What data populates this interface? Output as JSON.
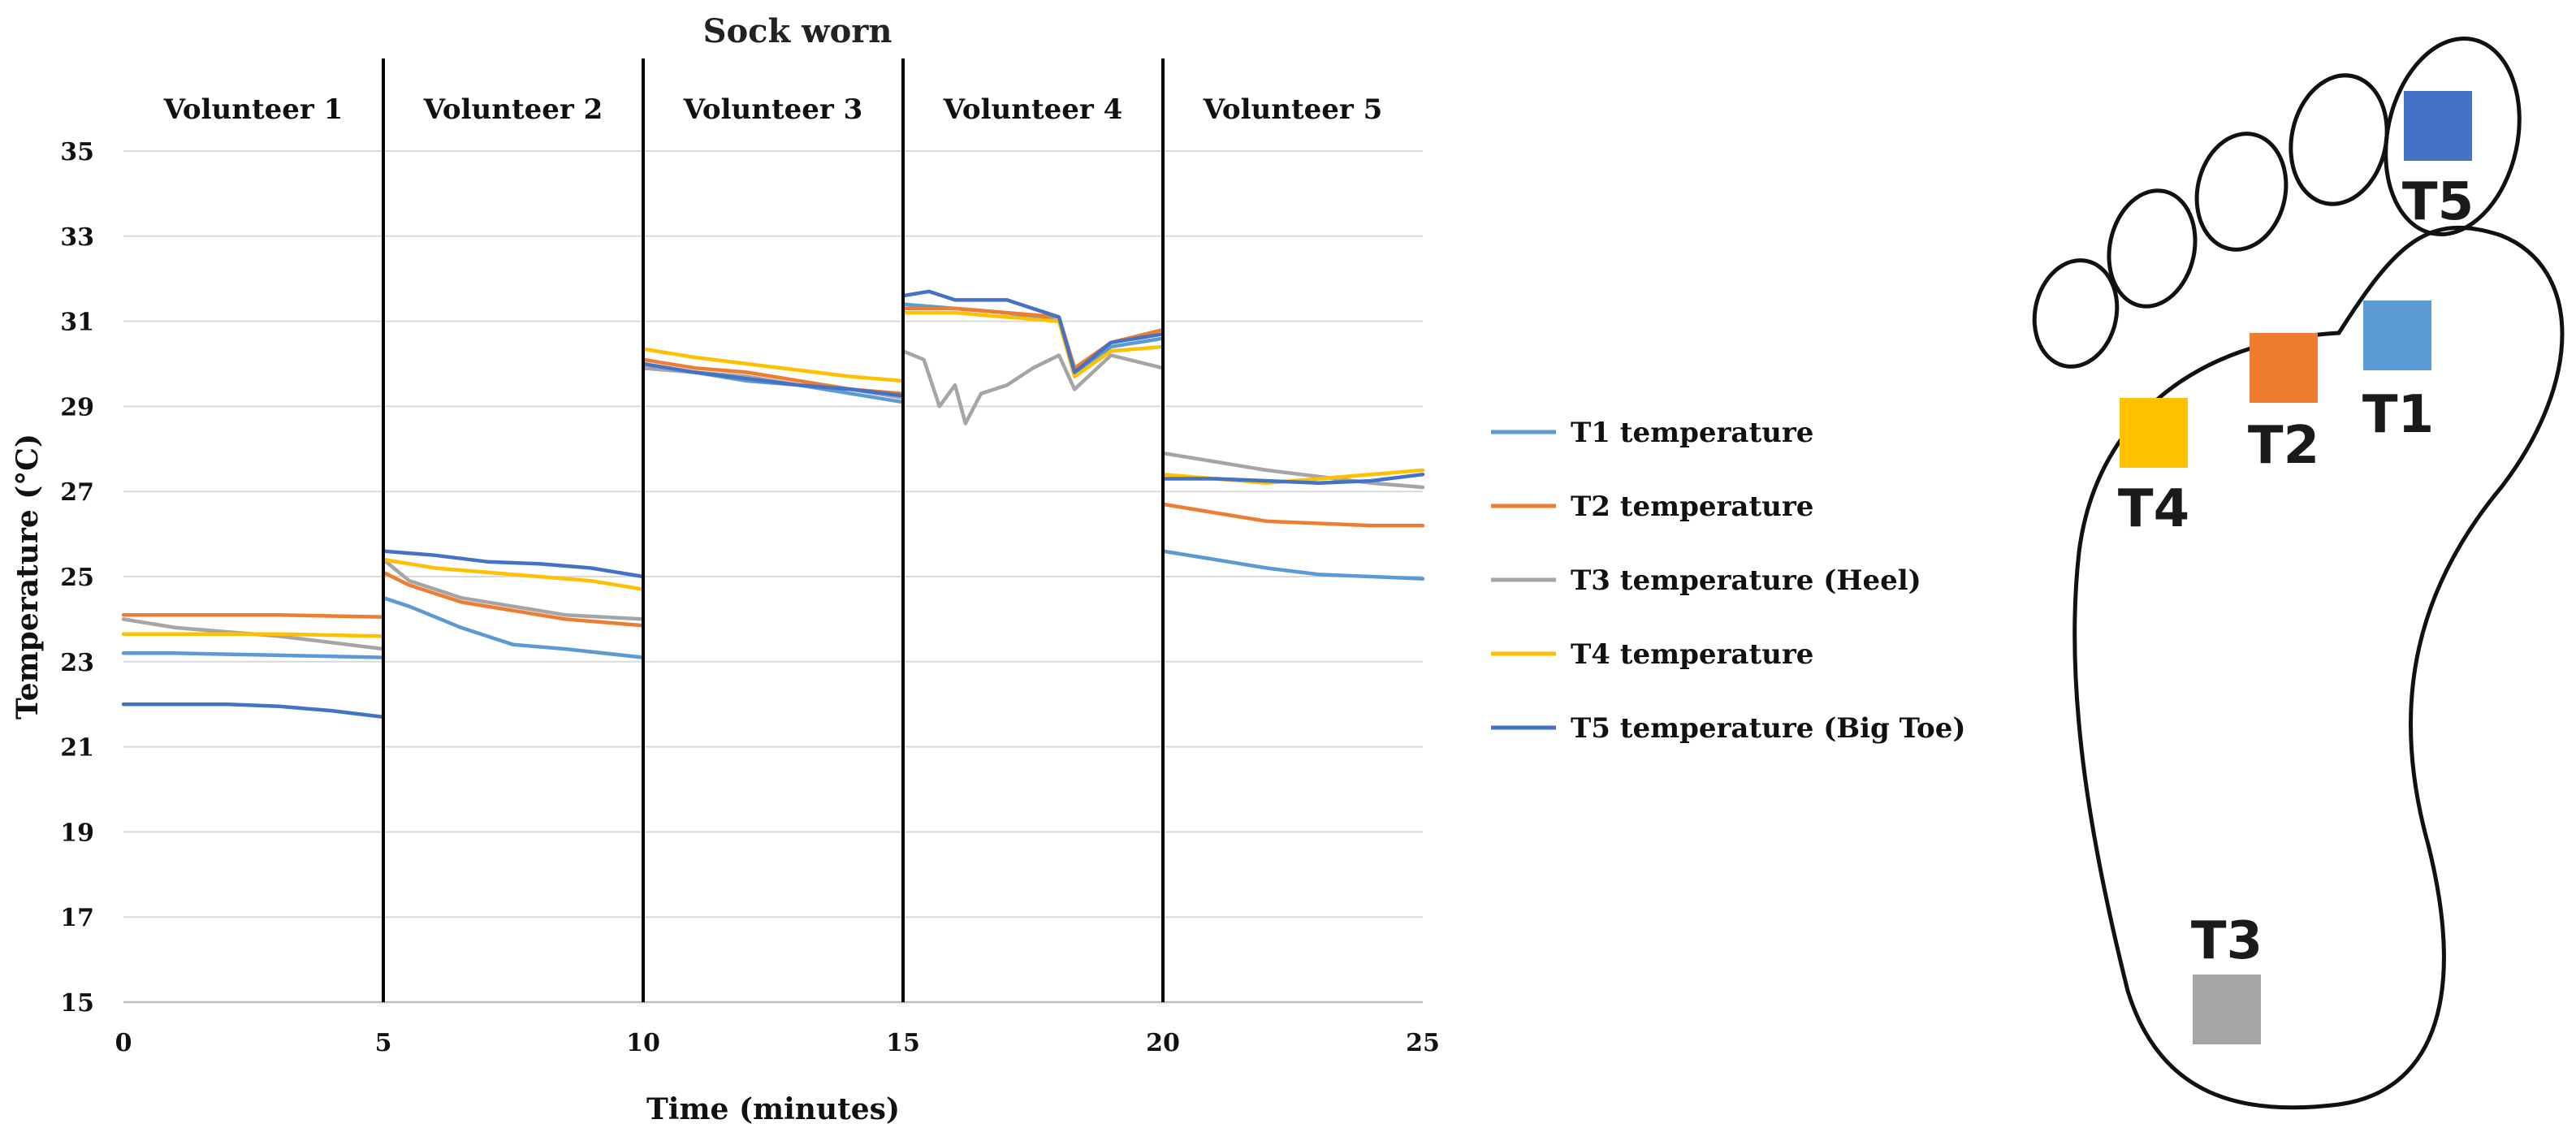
{
  "chart_data": {
    "type": "line",
    "title": "Sock worn",
    "xlabel": "Time (minutes)",
    "ylabel": "Temperature (°C)",
    "xlim": [
      0,
      25
    ],
    "ylim": [
      15,
      35
    ],
    "xticks": [
      "0",
      "5",
      "10",
      "15",
      "20",
      "25"
    ],
    "yticks": [
      "15",
      "17",
      "19",
      "21",
      "23",
      "25",
      "27",
      "29",
      "31",
      "33",
      "35"
    ],
    "grid": "horizontal",
    "legend_position": "right",
    "segments": [
      {
        "label": "Volunteer 1",
        "start": 0,
        "end": 5
      },
      {
        "label": "Volunteer 2",
        "start": 5,
        "end": 10
      },
      {
        "label": "Volunteer 3",
        "start": 10,
        "end": 15
      },
      {
        "label": "Volunteer 4",
        "start": 15,
        "end": 20
      },
      {
        "label": "Volunteer 5",
        "start": 20,
        "end": 25
      }
    ],
    "series": [
      {
        "name": "T1 temperature",
        "color": "#5B9BD5",
        "segments": [
          [
            [
              0,
              23.2
            ],
            [
              1,
              23.2
            ],
            [
              3,
              23.15
            ],
            [
              5,
              23.1
            ]
          ],
          [
            [
              5,
              24.5
            ],
            [
              5.5,
              24.3
            ],
            [
              6.5,
              23.8
            ],
            [
              7.5,
              23.4
            ],
            [
              8.5,
              23.3
            ],
            [
              10,
              23.1
            ]
          ],
          [
            [
              10,
              29.9
            ],
            [
              11,
              29.8
            ],
            [
              12,
              29.6
            ],
            [
              13,
              29.5
            ],
            [
              14,
              29.3
            ],
            [
              15,
              29.1
            ]
          ],
          [
            [
              15,
              31.4
            ],
            [
              16,
              31.3
            ],
            [
              17,
              31.2
            ],
            [
              18,
              31.0
            ],
            [
              18.3,
              29.8
            ],
            [
              19,
              30.4
            ],
            [
              20,
              30.6
            ]
          ],
          [
            [
              20,
              25.6
            ],
            [
              21,
              25.4
            ],
            [
              22,
              25.2
            ],
            [
              23,
              25.05
            ],
            [
              24,
              25.0
            ],
            [
              25,
              24.95
            ]
          ]
        ]
      },
      {
        "name": "T2 temperature",
        "color": "#ED7D31",
        "segments": [
          [
            [
              0,
              24.1
            ],
            [
              1,
              24.1
            ],
            [
              3,
              24.1
            ],
            [
              5,
              24.05
            ]
          ],
          [
            [
              5,
              25.1
            ],
            [
              5.5,
              24.8
            ],
            [
              6.5,
              24.4
            ],
            [
              7.5,
              24.2
            ],
            [
              8.5,
              24.0
            ],
            [
              10,
              23.85
            ]
          ],
          [
            [
              10,
              30.1
            ],
            [
              11,
              29.9
            ],
            [
              12,
              29.8
            ],
            [
              13,
              29.6
            ],
            [
              14,
              29.4
            ],
            [
              15,
              29.3
            ]
          ],
          [
            [
              15,
              31.3
            ],
            [
              16,
              31.3
            ],
            [
              17,
              31.2
            ],
            [
              18,
              31.1
            ],
            [
              18.3,
              29.9
            ],
            [
              19,
              30.5
            ],
            [
              20,
              30.8
            ]
          ],
          [
            [
              20,
              26.7
            ],
            [
              21,
              26.5
            ],
            [
              22,
              26.3
            ],
            [
              23,
              26.25
            ],
            [
              24,
              26.2
            ],
            [
              25,
              26.2
            ]
          ]
        ]
      },
      {
        "name": "T3 temperature (Heel)",
        "color": "#A5A5A5",
        "segments": [
          [
            [
              0,
              24.0
            ],
            [
              1,
              23.8
            ],
            [
              2,
              23.7
            ],
            [
              3,
              23.6
            ],
            [
              4,
              23.45
            ],
            [
              5,
              23.3
            ]
          ],
          [
            [
              5,
              25.4
            ],
            [
              5.5,
              24.9
            ],
            [
              6.5,
              24.5
            ],
            [
              7.5,
              24.3
            ],
            [
              8.5,
              24.1
            ],
            [
              10,
              24.0
            ]
          ],
          [
            [
              10,
              29.9
            ],
            [
              11,
              29.8
            ],
            [
              12,
              29.7
            ],
            [
              13,
              29.5
            ],
            [
              14,
              29.4
            ],
            [
              15,
              29.2
            ]
          ],
          [
            [
              15,
              30.3
            ],
            [
              15.4,
              30.1
            ],
            [
              15.7,
              29.0
            ],
            [
              16.0,
              29.5
            ],
            [
              16.2,
              28.6
            ],
            [
              16.5,
              29.3
            ],
            [
              17,
              29.5
            ],
            [
              17.5,
              29.9
            ],
            [
              18,
              30.2
            ],
            [
              18.3,
              29.4
            ],
            [
              19,
              30.2
            ],
            [
              20,
              29.9
            ]
          ],
          [
            [
              20,
              27.9
            ],
            [
              21,
              27.7
            ],
            [
              22,
              27.5
            ],
            [
              23,
              27.35
            ],
            [
              24,
              27.2
            ],
            [
              25,
              27.1
            ]
          ]
        ]
      },
      {
        "name": "T4 temperature",
        "color": "#FFC000",
        "segments": [
          [
            [
              0,
              23.65
            ],
            [
              1,
              23.65
            ],
            [
              3,
              23.65
            ],
            [
              5,
              23.6
            ]
          ],
          [
            [
              5,
              25.4
            ],
            [
              6,
              25.2
            ],
            [
              7,
              25.1
            ],
            [
              8,
              25.0
            ],
            [
              9,
              24.9
            ],
            [
              10,
              24.7
            ]
          ],
          [
            [
              10,
              30.35
            ],
            [
              11,
              30.15
            ],
            [
              12,
              30.0
            ],
            [
              13,
              29.85
            ],
            [
              14,
              29.7
            ],
            [
              15,
              29.6
            ]
          ],
          [
            [
              15,
              31.2
            ],
            [
              16,
              31.2
            ],
            [
              17,
              31.1
            ],
            [
              18,
              31.0
            ],
            [
              18.3,
              29.7
            ],
            [
              19,
              30.3
            ],
            [
              20,
              30.4
            ]
          ],
          [
            [
              20,
              27.4
            ],
            [
              21,
              27.3
            ],
            [
              22,
              27.2
            ],
            [
              23,
              27.3
            ],
            [
              24,
              27.4
            ],
            [
              25,
              27.5
            ]
          ]
        ]
      },
      {
        "name": "T5 temperature (Big Toe)",
        "color": "#4472C4",
        "segments": [
          [
            [
              0,
              22.0
            ],
            [
              1,
              22.0
            ],
            [
              2,
              22.0
            ],
            [
              3,
              21.95
            ],
            [
              4,
              21.85
            ],
            [
              5,
              21.7
            ]
          ],
          [
            [
              5,
              25.6
            ],
            [
              6,
              25.5
            ],
            [
              7,
              25.35
            ],
            [
              8,
              25.3
            ],
            [
              9,
              25.2
            ],
            [
              10,
              25.0
            ]
          ],
          [
            [
              10,
              30.0
            ],
            [
              11,
              29.8
            ],
            [
              12,
              29.65
            ],
            [
              13,
              29.5
            ],
            [
              14,
              29.4
            ],
            [
              15,
              29.25
            ]
          ],
          [
            [
              15,
              31.6
            ],
            [
              15.5,
              31.7
            ],
            [
              16,
              31.5
            ],
            [
              17,
              31.5
            ],
            [
              18,
              31.1
            ],
            [
              18.3,
              29.8
            ],
            [
              19,
              30.5
            ],
            [
              20,
              30.7
            ]
          ],
          [
            [
              20,
              27.3
            ],
            [
              21,
              27.3
            ],
            [
              22,
              27.25
            ],
            [
              23,
              27.2
            ],
            [
              24,
              27.25
            ],
            [
              25,
              27.4
            ]
          ]
        ]
      }
    ]
  },
  "foot_diagram": {
    "sensors": [
      {
        "label": "T1",
        "color": "#5B9BD5"
      },
      {
        "label": "T2",
        "color": "#ED7D31"
      },
      {
        "label": "T3",
        "color": "#A5A5A5"
      },
      {
        "label": "T4",
        "color": "#FFC000"
      },
      {
        "label": "T5",
        "color": "#4472C4"
      }
    ]
  }
}
